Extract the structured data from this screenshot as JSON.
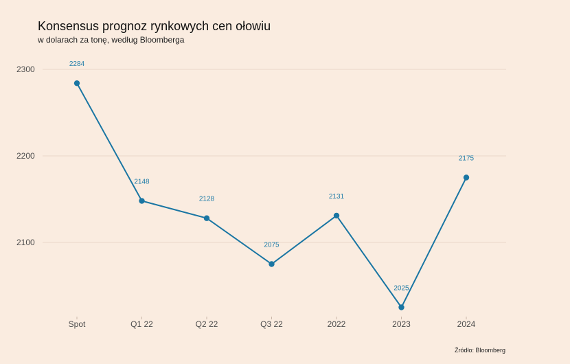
{
  "chart_data": {
    "type": "line",
    "title": "Konsensus prognoz rynkowych cen ołowiu",
    "subtitle": "w dolarach za tonę, według Bloomberga",
    "categories": [
      "Spot",
      "Q1 22",
      "Q2 22",
      "Q3 22",
      "2022",
      "2023",
      "2024"
    ],
    "values": [
      2284,
      2148,
      2128,
      2075,
      2131,
      2025,
      2175
    ],
    "yticks": [
      2100,
      2200,
      2300
    ],
    "ylim": [
      2015,
      2300
    ],
    "grid": true,
    "line_color": "#1a76a3",
    "label_color": "#1f7ca8",
    "source": "Źródło: Bloomberg"
  }
}
